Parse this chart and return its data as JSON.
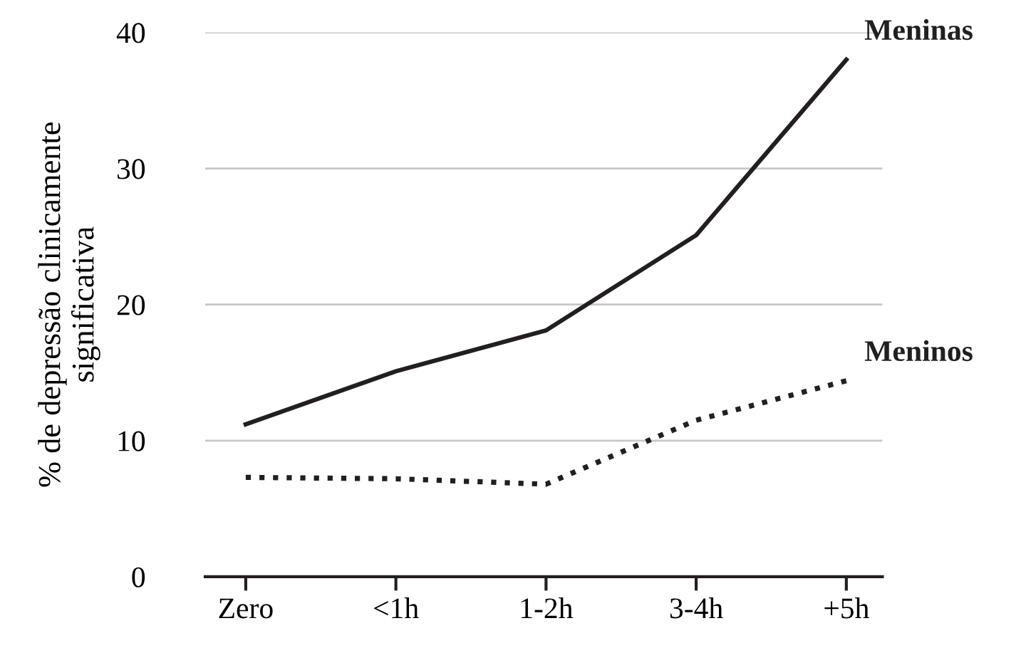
{
  "chart_data": {
    "type": "line",
    "ylabel": "% de depressão clinicamente\nsignificativa",
    "categories": [
      "Zero",
      "<1h",
      "1-2h",
      "3-4h",
      "+5h"
    ],
    "series": [
      {
        "name": "Meninas",
        "color": "#231f20",
        "line_style": "solid",
        "values": [
          11.2,
          15.1,
          18.1,
          25.1,
          38.0
        ]
      },
      {
        "name": "Meninos",
        "color": "#231f20",
        "line_style": "dotted",
        "values": [
          7.3,
          7.2,
          6.8,
          11.5,
          14.4
        ]
      }
    ],
    "ylim": [
      0,
      40
    ],
    "yticks": [
      0,
      10,
      20,
      30,
      40
    ],
    "grid": "y",
    "legend": false,
    "marker": "none"
  }
}
